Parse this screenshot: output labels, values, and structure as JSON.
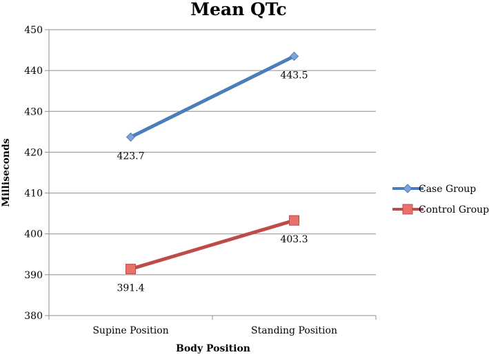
{
  "chart_data": {
    "type": "line",
    "title": "Mean QTc",
    "xlabel": "Body Position",
    "ylabel": "Milliseconds",
    "categories": [
      "Supine Position",
      "Standing Position"
    ],
    "ylim": [
      380,
      450
    ],
    "yticks": [
      380,
      390,
      400,
      410,
      420,
      430,
      440,
      450
    ],
    "grid": true,
    "legend_position": "right",
    "series": [
      {
        "name": "Case Group",
        "values": [
          423.7,
          443.5
        ],
        "labels": [
          "423.7",
          "443.5"
        ],
        "color": "#4A7EBB",
        "marker_color": "#7FA4DB",
        "marker": "diamond"
      },
      {
        "name": "Control Group",
        "values": [
          391.4,
          403.3
        ],
        "labels": [
          "391.4",
          "403.3"
        ],
        "color": "#BE4B48",
        "marker_color": "#E8716E",
        "marker": "square"
      }
    ]
  }
}
